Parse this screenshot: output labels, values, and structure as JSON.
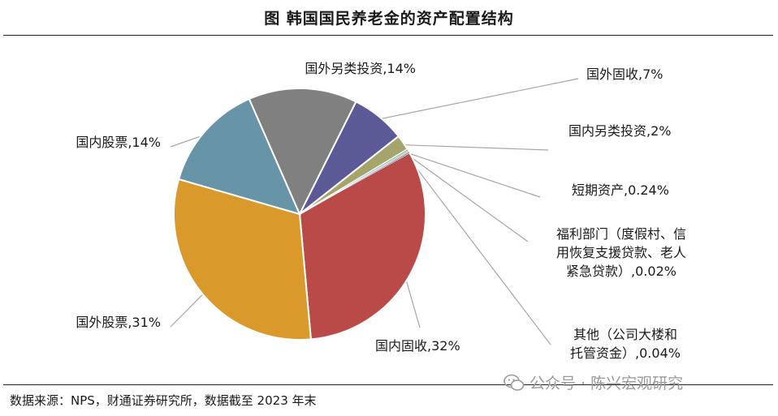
{
  "title": "图  韩国国民养老金的资产配置结构",
  "source": "数据来源：NPS，财通证券研究所，数据截至 2023 年末",
  "watermark": "公众号 · 陈兴宏观研究",
  "chart_data": {
    "type": "pie",
    "title": "图  韩国国民养老金的资产配置结构",
    "unit": "%",
    "start_angle_deg": 60,
    "direction": "clockwise",
    "slices": [
      {
        "name": "国内固收",
        "value": 32,
        "color": "#b94a48",
        "label_lines": [
          "国内固收,32%"
        ]
      },
      {
        "name": "国外股票",
        "value": 31,
        "color": "#d99a2b",
        "label_lines": [
          "国外股票,31%"
        ]
      },
      {
        "name": "国内股票",
        "value": 14,
        "color": "#6794a7",
        "label_lines": [
          "国内股票,14%"
        ]
      },
      {
        "name": "国外另类投资",
        "value": 14,
        "color": "#808080",
        "label_lines": [
          "国外另类投资,14%"
        ]
      },
      {
        "name": "国外固收",
        "value": 7,
        "color": "#5b5a96",
        "label_lines": [
          "国外固收,7%"
        ]
      },
      {
        "name": "国内另类投资",
        "value": 2,
        "color": "#a5a46a",
        "label_lines": [
          "国内另类投资,2%"
        ]
      },
      {
        "name": "短期资产",
        "value": 0.24,
        "color": "#8fbfd1",
        "label_lines": [
          "短期资产,0.24%"
        ]
      },
      {
        "name": "福利部门（度假村、信用恢复支援贷款、老人紧急贷款）",
        "value": 0.02,
        "color": "#e0a15f",
        "label_lines": [
          "福利部门（度假村、信",
          "用恢复支援贷款、老人",
          "紧急贷款）,0.02%"
        ]
      },
      {
        "name": "其他（公司大楼和托管资金）",
        "value": 0.04,
        "color": "#4f81bd",
        "label_lines": [
          "其他（公司大楼和",
          "托管资金）,0.04%"
        ]
      }
    ]
  }
}
